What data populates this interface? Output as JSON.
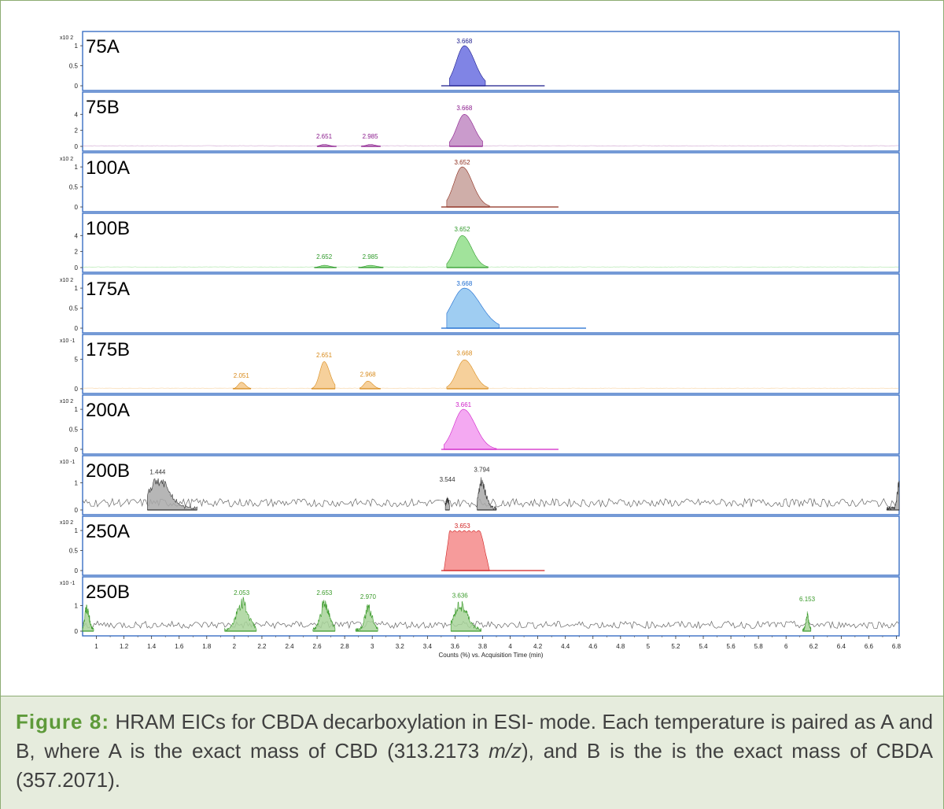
{
  "chart_data": {
    "type": "stacked-chromatogram",
    "xlabel": "Counts (%) vs. Acquisition Time (min)",
    "xlim": [
      0.9,
      6.82
    ],
    "xticks": [
      1,
      1.2,
      1.4,
      1.6,
      1.8,
      2,
      2.2,
      2.4,
      2.6,
      2.8,
      3,
      3.2,
      3.4,
      3.6,
      3.8,
      4,
      4.2,
      4.4,
      4.6,
      4.8,
      5,
      5.2,
      5.4,
      5.6,
      5.8,
      6,
      6.2,
      6.4,
      6.6,
      6.8
    ],
    "panels": [
      {
        "name": "75A",
        "color": "#6a6ee0",
        "line": "#1a1a8c",
        "scale": "x10 2",
        "yticks": [
          0,
          0.5,
          1
        ],
        "ymax": 1.12,
        "noise": 0,
        "baseline": [
          3.5,
          4.25
        ],
        "peaks": [
          {
            "rt": 3.668,
            "label": "3.668",
            "height": 1.0,
            "width": 0.13,
            "start": 3.56,
            "end": 3.82,
            "label_y": 1.02
          }
        ]
      },
      {
        "name": "75B",
        "color": "#c18ac3",
        "line": "#8a1a8c",
        "scale": "",
        "yticks": [
          0,
          2,
          4
        ],
        "ymax": 5.6,
        "noise": 0.08,
        "baseline": null,
        "peaks": [
          {
            "rt": 2.651,
            "label": "2.651",
            "height": 0.25,
            "width": 0.06,
            "start": 2.6,
            "end": 2.74,
            "label_y": 0.8
          },
          {
            "rt": 2.985,
            "label": "2.985",
            "height": 0.25,
            "width": 0.06,
            "start": 2.92,
            "end": 3.06,
            "label_y": 0.8
          },
          {
            "rt": 3.668,
            "label": "3.668",
            "height": 4.0,
            "width": 0.12,
            "start": 3.56,
            "end": 3.8,
            "label_y": 4.3
          }
        ]
      },
      {
        "name": "100A",
        "color": "#c7a09a",
        "line": "#8c2a1a",
        "scale": "x10 2",
        "yticks": [
          0,
          0.5,
          1
        ],
        "ymax": 1.12,
        "noise": 0,
        "baseline": [
          3.5,
          4.35
        ],
        "peaks": [
          {
            "rt": 3.652,
            "label": "3.652",
            "height": 1.0,
            "width": 0.13,
            "start": 3.54,
            "end": 3.85,
            "label_y": 1.02
          }
        ]
      },
      {
        "name": "100B",
        "color": "#90de8a",
        "line": "#2f9a2a",
        "scale": "",
        "yticks": [
          0,
          2,
          4
        ],
        "ymax": 5.6,
        "noise": 0.08,
        "baseline": null,
        "peaks": [
          {
            "rt": 2.652,
            "label": "2.652",
            "height": 0.28,
            "width": 0.07,
            "start": 2.58,
            "end": 2.74,
            "label_y": 0.9
          },
          {
            "rt": 2.985,
            "label": "2.985",
            "height": 0.28,
            "width": 0.08,
            "start": 2.9,
            "end": 3.08,
            "label_y": 0.9
          },
          {
            "rt": 3.652,
            "label": "3.652",
            "height": 4.0,
            "width": 0.12,
            "start": 3.54,
            "end": 3.84,
            "label_y": 4.3
          }
        ]
      },
      {
        "name": "175A",
        "color": "#8ec4f0",
        "line": "#1a6ad0",
        "scale": "x10 2",
        "yticks": [
          0,
          0.5,
          1
        ],
        "ymax": 1.12,
        "noise": 0,
        "baseline": [
          3.5,
          4.55
        ],
        "peaks": [
          {
            "rt": 3.668,
            "label": "3.668",
            "height": 1.0,
            "width": 0.2,
            "start": 3.54,
            "end": 3.92,
            "label_y": 1.02
          }
        ]
      },
      {
        "name": "175B",
        "color": "#f5c88a",
        "line": "#d88a1a",
        "scale": "x10 -1",
        "yticks": [
          0,
          5
        ],
        "ymax": 7.6,
        "noise": 0.1,
        "baseline": null,
        "peaks": [
          {
            "rt": 2.051,
            "label": "2.051",
            "height": 1.1,
            "width": 0.05,
            "start": 1.99,
            "end": 2.12,
            "label_y": 1.6
          },
          {
            "rt": 2.651,
            "label": "2.651",
            "height": 4.6,
            "width": 0.07,
            "start": 2.56,
            "end": 2.73,
            "label_y": 5.1
          },
          {
            "rt": 2.968,
            "label": "2.968",
            "height": 1.3,
            "width": 0.06,
            "start": 2.91,
            "end": 3.06,
            "label_y": 1.8
          },
          {
            "rt": 3.668,
            "label": "3.668",
            "height": 4.9,
            "width": 0.12,
            "start": 3.54,
            "end": 3.84,
            "label_y": 5.4
          }
        ]
      },
      {
        "name": "200A",
        "color": "#f29af0",
        "line": "#d020c8",
        "scale": "x10 2",
        "yticks": [
          0,
          0.5,
          1
        ],
        "ymax": 1.12,
        "noise": 0,
        "baseline": [
          3.5,
          4.35
        ],
        "peaks": [
          {
            "rt": 3.661,
            "label": "3.661",
            "height": 1.0,
            "width": 0.15,
            "start": 3.52,
            "end": 3.9,
            "label_y": 1.02
          }
        ]
      },
      {
        "name": "200B",
        "color": "#a9a9a9",
        "line": "#333333",
        "scale": "x10 -1",
        "yticks": [
          0,
          1
        ],
        "ymax": 1.65,
        "noise": 0.32,
        "baseline": null,
        "peaks": [
          {
            "rt": 1.444,
            "label": "1.444",
            "height": 1.1,
            "width": 0.14,
            "start": 1.37,
            "end": 1.73,
            "label_y": 1.26,
            "noisy": true
          },
          {
            "rt": 3.544,
            "label": "3.544",
            "height": 0.35,
            "width": 0.02,
            "start": 3.53,
            "end": 3.56,
            "label_y": 0.98,
            "noisy": true
          },
          {
            "rt": 3.794,
            "label": "3.794",
            "height": 1.0,
            "width": 0.05,
            "start": 3.76,
            "end": 3.9,
            "label_y": 1.35,
            "noisy": true
          },
          {
            "rt": 6.82,
            "label": "",
            "height": 0.95,
            "width": 0.03,
            "start": 6.73,
            "end": 6.82,
            "label_y": 0,
            "noisy": true
          }
        ]
      },
      {
        "name": "250A",
        "color": "#f48a8a",
        "line": "#d02020",
        "scale": "x10 2",
        "yticks": [
          0,
          0.5,
          1
        ],
        "ymax": 1.12,
        "noise": 0,
        "baseline": [
          3.5,
          4.25
        ],
        "peaks": [
          {
            "rt": 3.653,
            "label": "3.653",
            "height": 1.0,
            "width": 0.26,
            "start": 3.52,
            "end": 3.85,
            "label_y": 1.02,
            "flat": true
          }
        ]
      },
      {
        "name": "250B",
        "color": "#a8d49a",
        "line": "#3a9a2a",
        "scale": "x10 -1",
        "yticks": [
          0,
          1
        ],
        "ymax": 1.75,
        "noise": 0.3,
        "baseline": null,
        "peaks": [
          {
            "rt": 0.93,
            "label": "",
            "height": 0.9,
            "width": 0.03,
            "start": 0.9,
            "end": 0.98,
            "label_y": 0,
            "noisy": true
          },
          {
            "rt": 2.053,
            "label": "2.053",
            "height": 1.1,
            "width": 0.08,
            "start": 1.93,
            "end": 2.16,
            "label_y": 1.35,
            "noisy": true
          },
          {
            "rt": 2.653,
            "label": "2.653",
            "height": 1.1,
            "width": 0.06,
            "start": 2.57,
            "end": 2.73,
            "label_y": 1.35,
            "noisy": true
          },
          {
            "rt": 2.97,
            "label": "2.970",
            "height": 0.9,
            "width": 0.05,
            "start": 2.88,
            "end": 3.04,
            "label_y": 1.2,
            "noisy": true
          },
          {
            "rt": 3.636,
            "label": "3.636",
            "height": 1.0,
            "width": 0.09,
            "start": 3.57,
            "end": 3.79,
            "label_y": 1.25,
            "noisy": true
          },
          {
            "rt": 6.153,
            "label": "6.153",
            "height": 0.6,
            "width": 0.02,
            "start": 6.12,
            "end": 6.18,
            "label_y": 1.1,
            "noisy": true
          }
        ]
      }
    ]
  },
  "caption": {
    "label": "Figure 8:",
    "text_before_mz": " HRAM EICs for CBDA decarboxylation in ESI- mode. Each temperature is paired as A and B, where A is the exact mass of CBD (313.2173 ",
    "mz": "m/z",
    "text_after_mz": "), and B is the is the exact mass of CBDA (357.2071)."
  }
}
